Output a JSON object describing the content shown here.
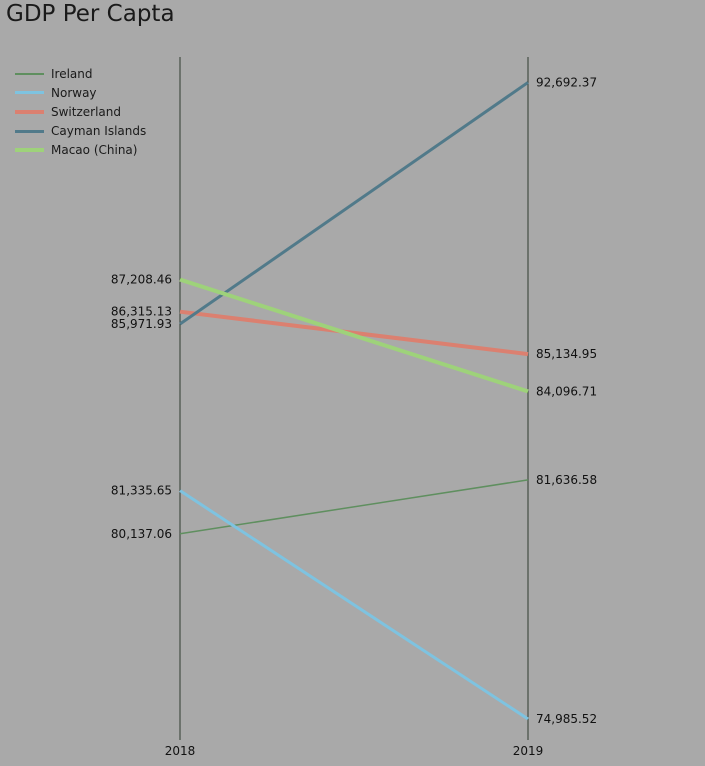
{
  "chart_data": {
    "type": "line",
    "title": "GDP Per Capta",
    "categories": [
      "2018",
      "2019"
    ],
    "ylim": [
      74400,
      93400
    ],
    "legend_position": "top-left",
    "grid": false,
    "series": [
      {
        "name": "Ireland",
        "values": [
          80137.06,
          81636.58
        ],
        "labels": [
          "80,137.06",
          "81,636.58"
        ],
        "color": "#5f8f5f",
        "width": 1.5
      },
      {
        "name": "Norway",
        "values": [
          81335.65,
          74985.52
        ],
        "labels": [
          "81,335.65",
          "74,985.52"
        ],
        "color": "#7ec3e0",
        "width": 3
      },
      {
        "name": "Switzerland",
        "values": [
          86315.13,
          85134.95
        ],
        "labels": [
          "86,315.13",
          "85,134.95"
        ],
        "color": "#db8070",
        "width": 4
      },
      {
        "name": "Cayman Islands",
        "values": [
          85971.93,
          92692.37
        ],
        "labels": [
          "85,971.93",
          "92,692.37"
        ],
        "color": "#517a8a",
        "width": 3
      },
      {
        "name": "Macao (China)",
        "values": [
          87208.46,
          84096.71
        ],
        "labels": [
          "87,208.46",
          "84,096.71"
        ],
        "color": "#9ed27a",
        "width": 4
      }
    ]
  }
}
